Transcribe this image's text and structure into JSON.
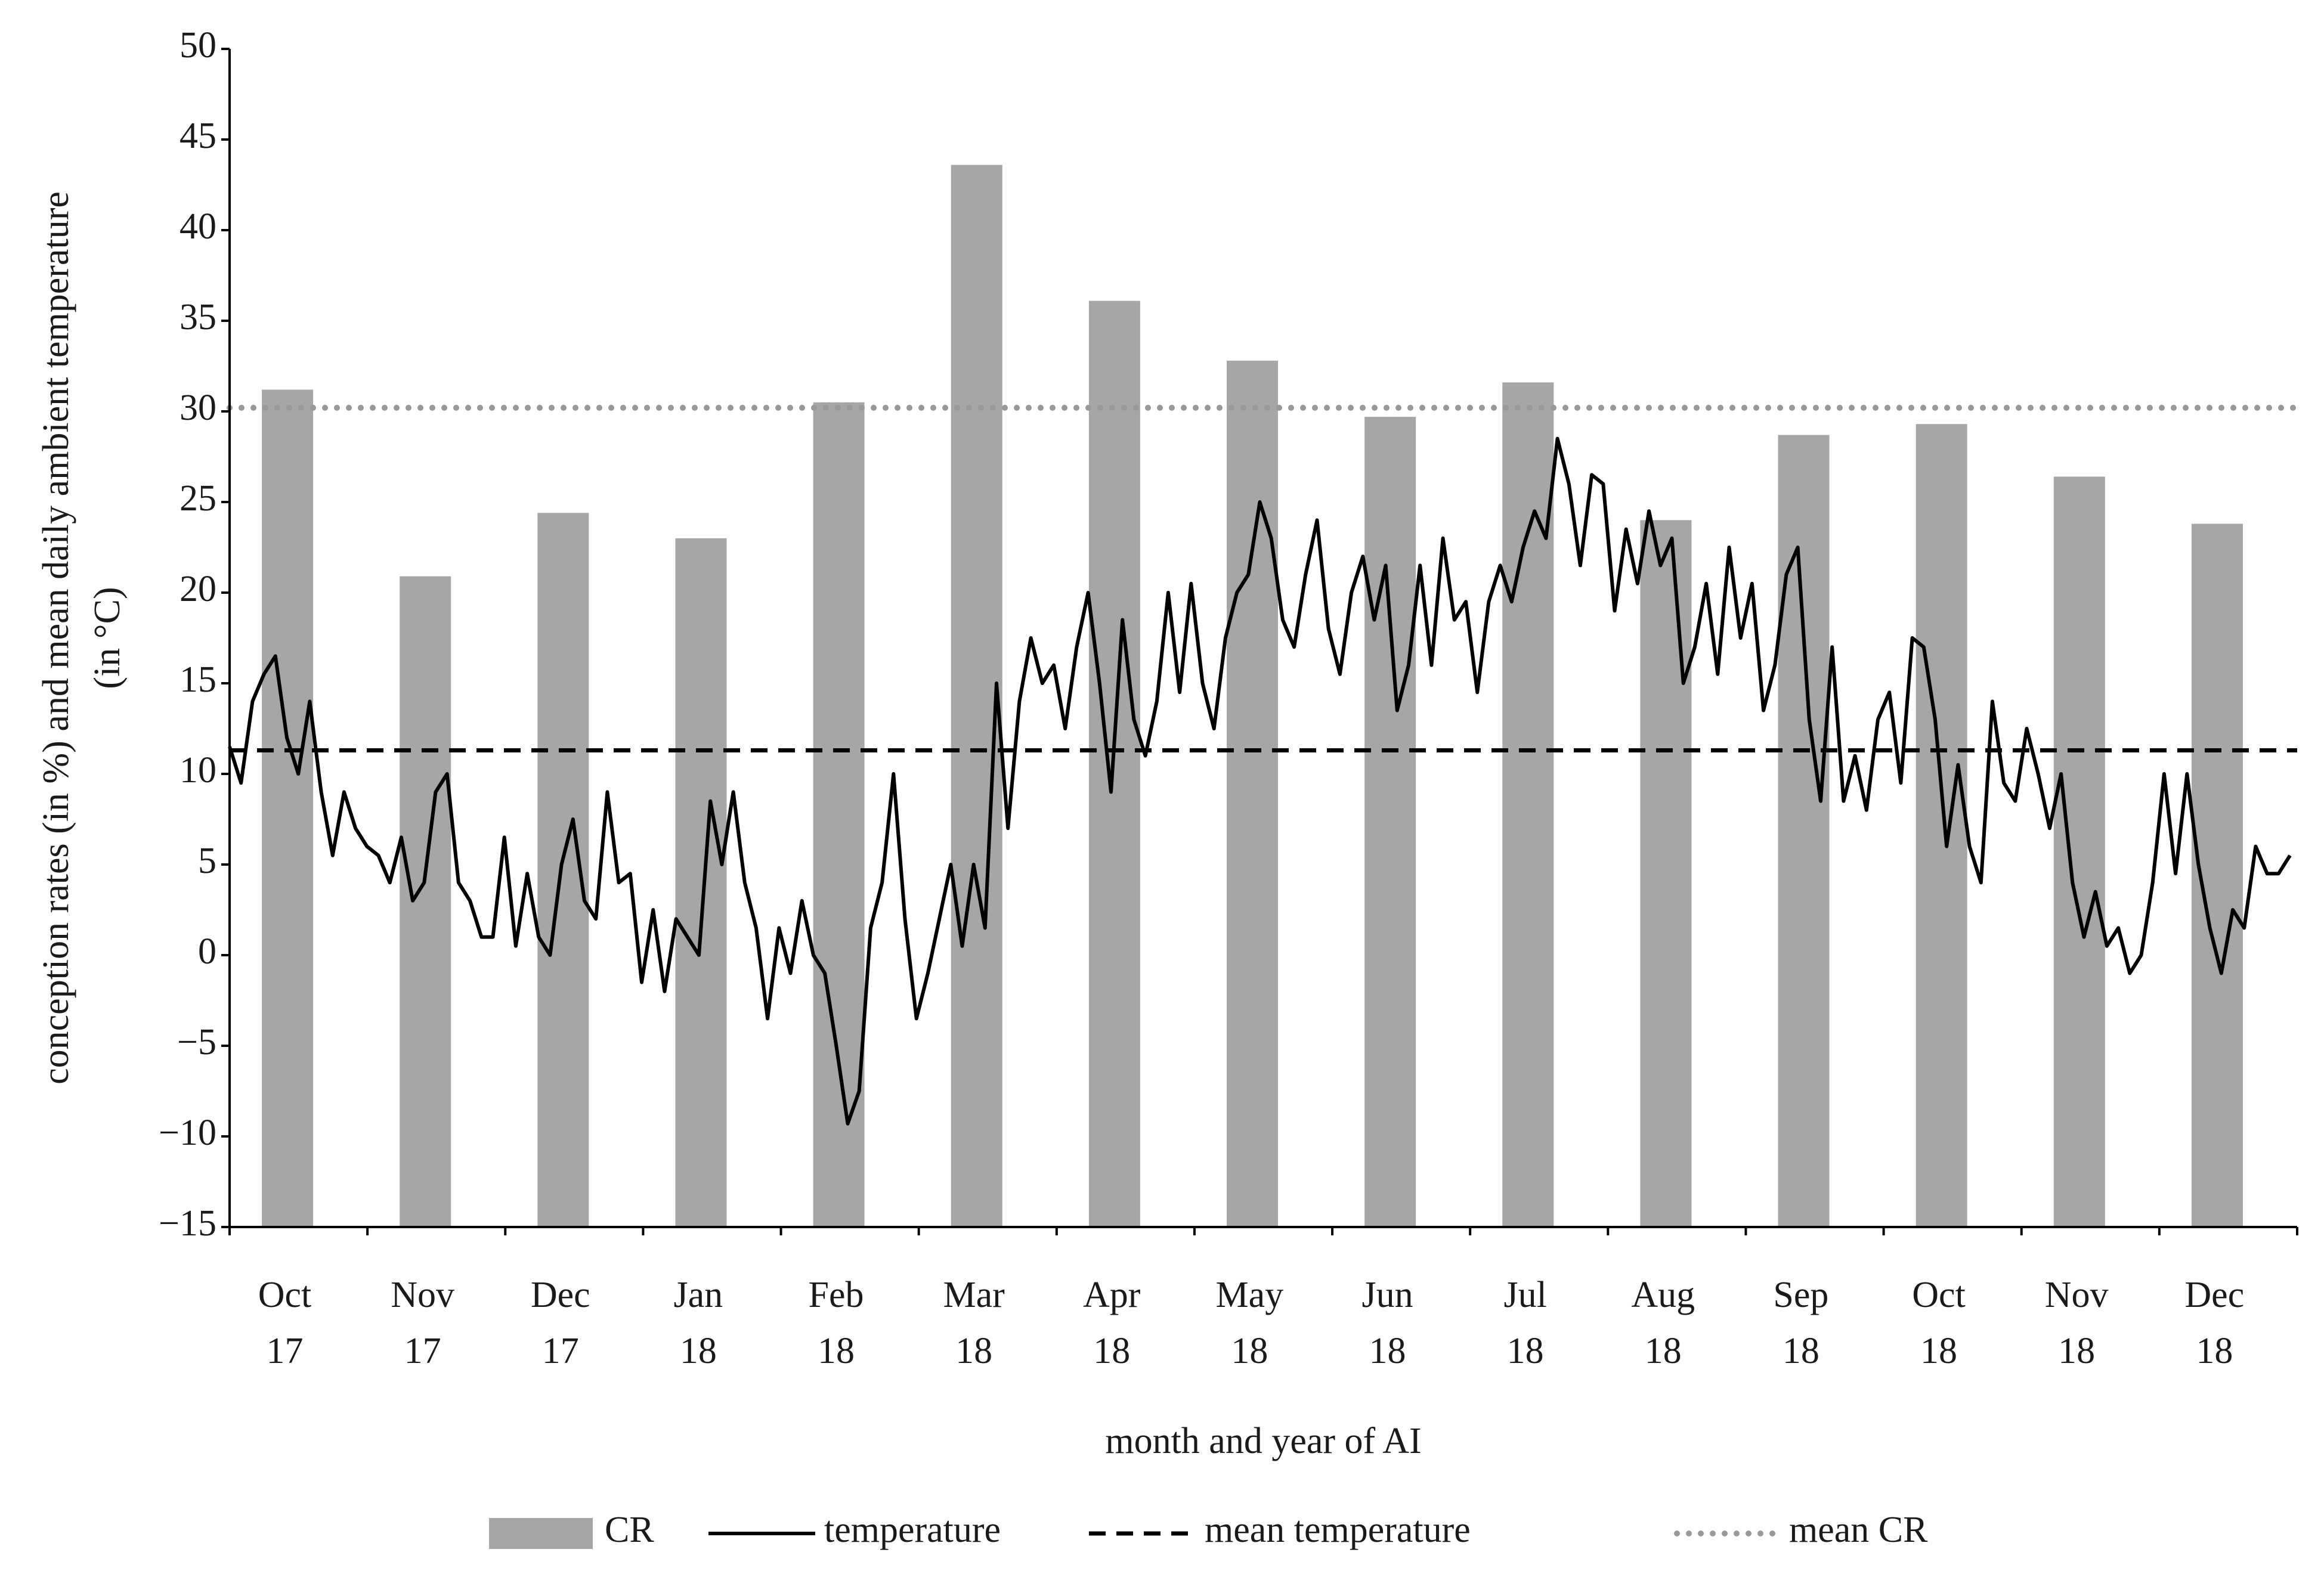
{
  "chart_data": {
    "type": "bar",
    "ylabel": [
      "conception rates (in %) and mean daily ambient temperature",
      "(in °C)"
    ],
    "xlabel": "month and year of AI",
    "categories": [
      "Oct 17",
      "Nov 17",
      "Dec 17",
      "Jan 18",
      "Feb 18",
      "Mar 18",
      "Apr 18",
      "May 18",
      "Jun 18",
      "Jul 18",
      "Aug 18",
      "Sep 18",
      "Oct 18",
      "Nov 18",
      "Dec 18"
    ],
    "series": [
      {
        "name": "CR",
        "color": "#a6a6a6",
        "values": [
          31.2,
          20.9,
          24.4,
          23.0,
          30.5,
          43.6,
          36.1,
          32.8,
          29.7,
          31.6,
          24.0,
          28.7,
          29.3,
          26.4,
          23.8
        ]
      }
    ],
    "temperature": {
      "name": "temperature",
      "color": "#000000",
      "values": [
        11.5,
        9.5,
        14,
        15.5,
        16.5,
        12,
        10,
        14,
        9,
        5.5,
        9,
        7,
        6,
        5.5,
        4,
        6.5,
        3,
        4,
        9,
        10,
        4,
        3,
        1,
        1,
        6.5,
        0.5,
        4.5,
        1,
        0,
        5,
        7.5,
        3,
        2,
        9,
        4,
        4.5,
        -1.5,
        2.5,
        -2,
        2,
        1,
        0,
        8.5,
        5,
        9,
        4,
        1.5,
        -3.5,
        1.5,
        -1,
        3,
        0,
        -1,
        -5,
        -9.3,
        -7.5,
        1.5,
        4,
        10,
        2,
        -3.5,
        -1,
        2,
        5,
        0.5,
        5,
        1.5,
        15,
        7,
        14,
        17.5,
        15,
        16,
        12.5,
        17,
        20,
        15,
        9,
        18.5,
        13,
        11,
        14,
        20,
        14.5,
        20.5,
        15,
        12.5,
        17.5,
        20,
        21,
        25,
        23,
        18.5,
        17,
        21,
        24,
        18,
        15.5,
        20,
        22,
        18.5,
        21.5,
        13.5,
        16,
        21.5,
        16,
        23,
        18.5,
        19.5,
        14.5,
        19.5,
        21.5,
        19.5,
        22.5,
        24.5,
        23,
        28.5,
        26,
        21.5,
        26.5,
        26,
        19,
        23.5,
        20.5,
        24.5,
        21.5,
        23,
        15,
        17,
        20.5,
        15.5,
        22.5,
        17.5,
        20.5,
        13.5,
        16,
        21,
        22.5,
        13,
        8.5,
        17,
        8.5,
        11,
        8,
        13,
        14.5,
        9.5,
        17.5,
        17,
        13,
        6,
        10.5,
        6,
        4,
        14,
        9.5,
        8.5,
        12.5,
        10,
        7,
        10,
        4,
        1,
        3.5,
        0.5,
        1.5,
        -1,
        0,
        4,
        10,
        4.5,
        10,
        5,
        1.5,
        -1,
        2.5,
        1.5,
        6,
        4.5,
        4.5,
        5.5
      ]
    },
    "mean_temperature": {
      "name": "mean temperature",
      "color": "#000000",
      "value": 11.3
    },
    "mean_cr": {
      "name": "mean CR",
      "color": "#999999",
      "value": 30.2
    },
    "ylim": [
      -15,
      50
    ],
    "yticks": [
      {
        "value": -15,
        "label": "−15"
      },
      {
        "value": -10,
        "label": "−10"
      },
      {
        "value": -5,
        "label": "−5"
      },
      0,
      5,
      10,
      15,
      20,
      25,
      30,
      35,
      40,
      45,
      50
    ]
  }
}
